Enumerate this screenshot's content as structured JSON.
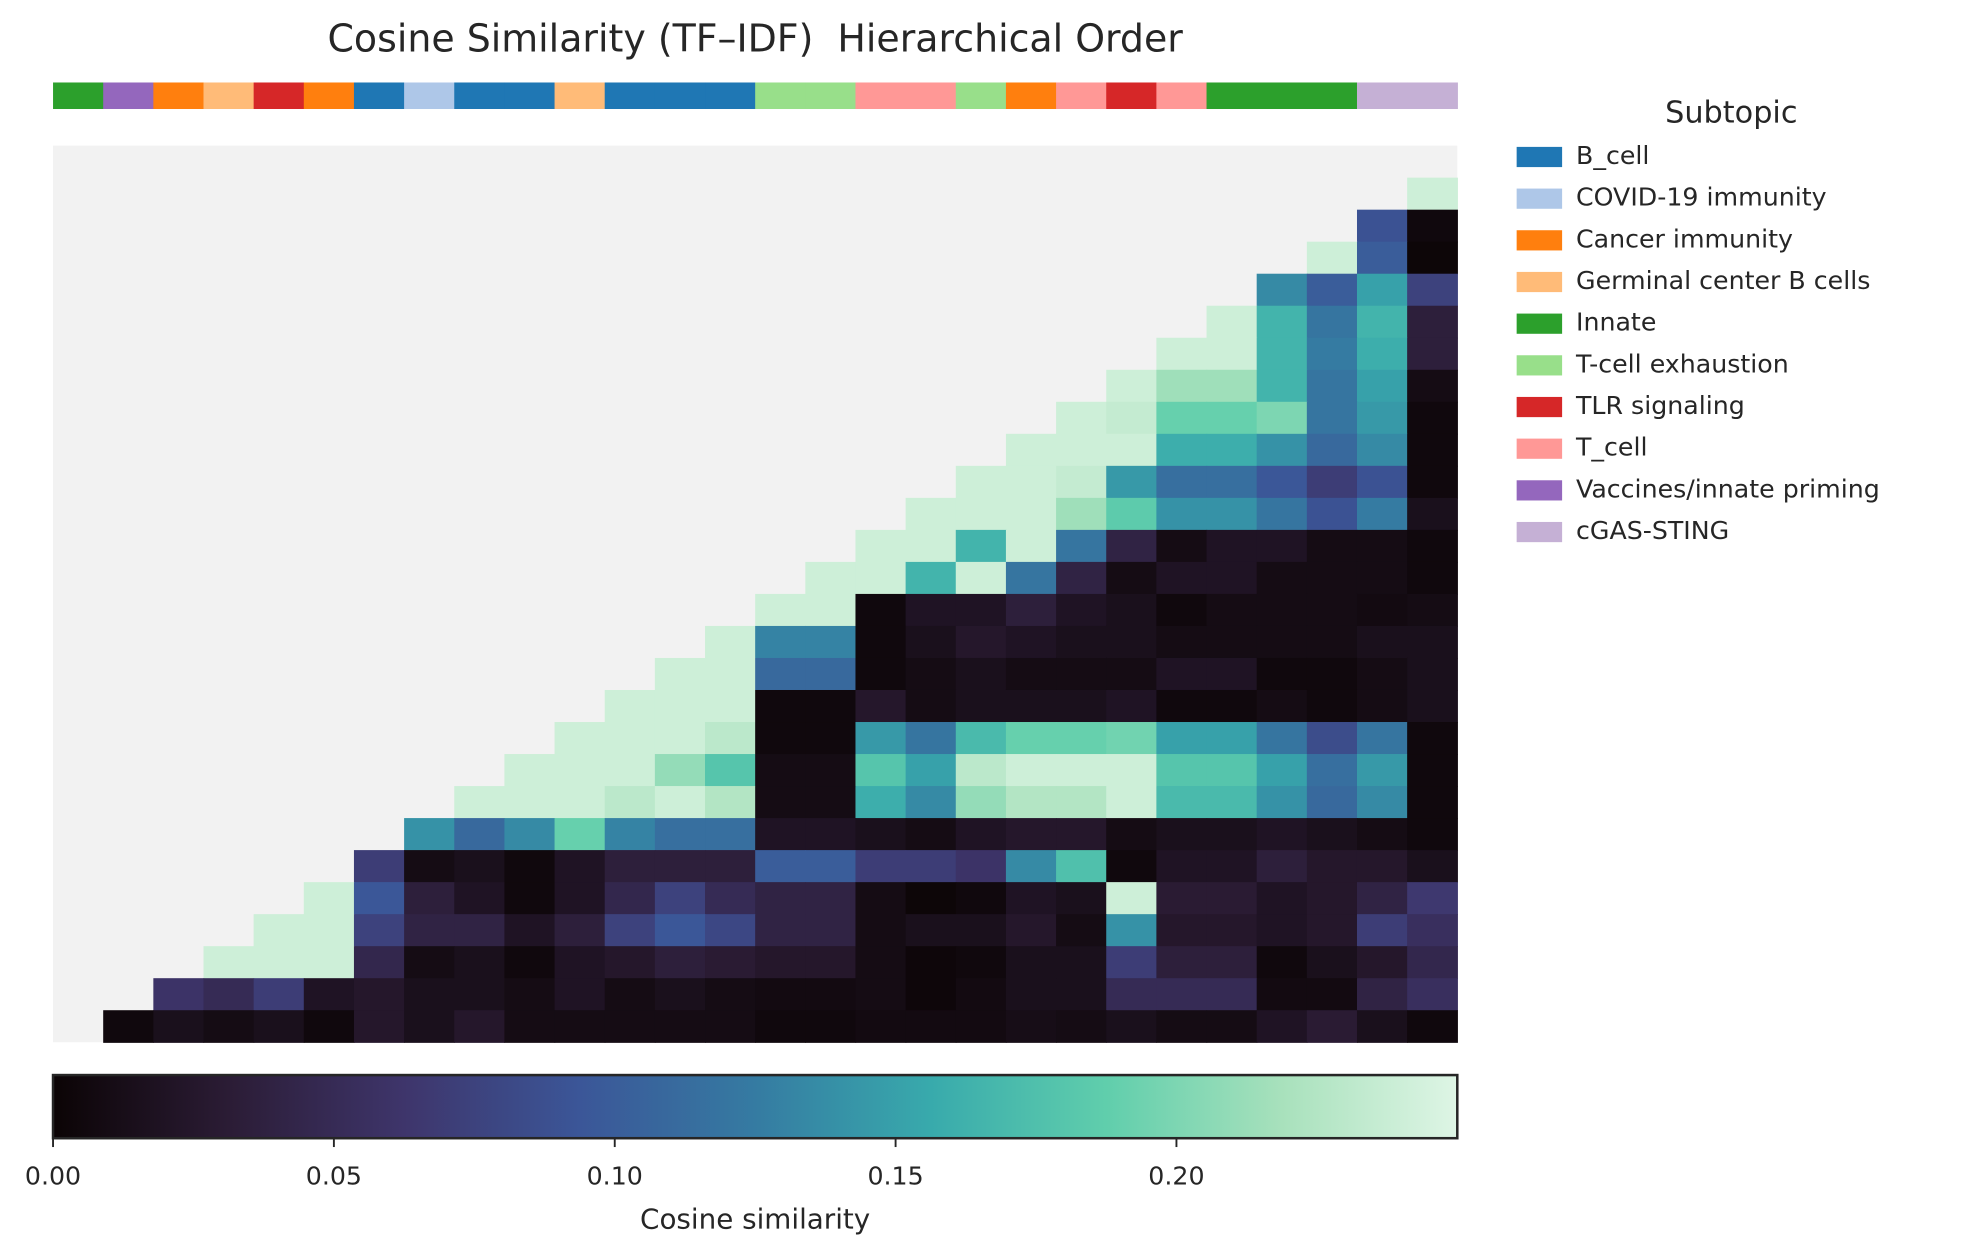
{
  "chart_data": {
    "type": "heatmap",
    "title": "Cosine Similarity (TF–IDF)  Hierarchical Order",
    "colorbar_label": "Cosine similarity",
    "legend_title": "Subtopic",
    "mask_color": "#f2f2f2",
    "colormap": [
      "#0b0405",
      "#2b1c35",
      "#3e356b",
      "#3b5698",
      "#357ba2",
      "#38aaac",
      "#60ceac",
      "#a8e1bc",
      "#def5e5"
    ],
    "clim": [
      0,
      0.25
    ],
    "cticks": [
      {
        "value": 0,
        "label": "0.00"
      },
      {
        "value": 0.05,
        "label": "0.05"
      },
      {
        "value": 0.1,
        "label": "0.10"
      },
      {
        "value": 0.15,
        "label": "0.15"
      },
      {
        "value": 0.2,
        "label": "0.20"
      }
    ],
    "subtopics": [
      {
        "name": "B_cell",
        "color": "#1f77b4"
      },
      {
        "name": "COVID-19 immunity",
        "color": "#aec7e8"
      },
      {
        "name": "Cancer immunity",
        "color": "#ff7f0e"
      },
      {
        "name": "Germinal center B cells",
        "color": "#ffbb78"
      },
      {
        "name": "Innate",
        "color": "#2ca02c"
      },
      {
        "name": "T-cell exhaustion",
        "color": "#98df8a"
      },
      {
        "name": "TLR signaling",
        "color": "#d62728"
      },
      {
        "name": "T_cell",
        "color": "#ff9896"
      },
      {
        "name": "Vaccines/innate priming",
        "color": "#9467bd"
      },
      {
        "name": "cGAS-STING",
        "color": "#c5b0d5"
      }
    ],
    "column_subtopics": [
      "Innate",
      "Vaccines/innate priming",
      "Cancer immunity",
      "Germinal center B cells",
      "TLR signaling",
      "Cancer immunity",
      "B_cell",
      "COVID-19 immunity",
      "B_cell",
      "B_cell",
      "Germinal center B cells",
      "B_cell",
      "B_cell",
      "B_cell",
      "T-cell exhaustion",
      "T-cell exhaustion",
      "T_cell",
      "T_cell",
      "T-cell exhaustion",
      "Cancer immunity",
      "T_cell",
      "TLR signaling",
      "T_cell",
      "Innate",
      "Innate",
      "Innate",
      "cGAS-STING",
      "cGAS-STING"
    ],
    "values": [
      [
        null,
        null,
        null,
        null,
        null,
        null,
        null,
        null,
        null,
        null,
        null,
        null,
        null,
        null,
        null,
        null,
        null,
        null,
        null,
        null,
        null,
        null,
        null,
        null,
        null,
        null,
        null,
        null
      ],
      [
        null,
        null,
        null,
        null,
        null,
        null,
        null,
        null,
        null,
        null,
        null,
        null,
        null,
        null,
        null,
        null,
        null,
        null,
        null,
        null,
        null,
        null,
        null,
        null,
        null,
        null,
        null,
        0.24
      ],
      [
        null,
        null,
        null,
        null,
        null,
        null,
        null,
        null,
        null,
        null,
        null,
        null,
        null,
        null,
        null,
        null,
        null,
        null,
        null,
        null,
        null,
        null,
        null,
        null,
        null,
        null,
        0.09,
        0.005
      ],
      [
        null,
        null,
        null,
        null,
        null,
        null,
        null,
        null,
        null,
        null,
        null,
        null,
        null,
        null,
        null,
        null,
        null,
        null,
        null,
        null,
        null,
        null,
        null,
        null,
        null,
        0.24,
        0.1,
        0.002
      ],
      [
        null,
        null,
        null,
        null,
        null,
        null,
        null,
        null,
        null,
        null,
        null,
        null,
        null,
        null,
        null,
        null,
        null,
        null,
        null,
        null,
        null,
        null,
        null,
        null,
        0.135,
        0.1,
        0.15,
        0.075
      ],
      [
        null,
        null,
        null,
        null,
        null,
        null,
        null,
        null,
        null,
        null,
        null,
        null,
        null,
        null,
        null,
        null,
        null,
        null,
        null,
        null,
        null,
        null,
        null,
        0.24,
        0.165,
        0.12,
        0.165,
        0.035
      ],
      [
        null,
        null,
        null,
        null,
        null,
        null,
        null,
        null,
        null,
        null,
        null,
        null,
        null,
        null,
        null,
        null,
        null,
        null,
        null,
        null,
        null,
        null,
        0.24,
        0.24,
        0.165,
        0.125,
        0.16,
        0.035
      ],
      [
        null,
        null,
        null,
        null,
        null,
        null,
        null,
        null,
        null,
        null,
        null,
        null,
        null,
        null,
        null,
        null,
        null,
        null,
        null,
        null,
        null,
        0.24,
        0.215,
        0.215,
        0.165,
        0.12,
        0.15,
        0.01
      ],
      [
        null,
        null,
        null,
        null,
        null,
        null,
        null,
        null,
        null,
        null,
        null,
        null,
        null,
        null,
        null,
        null,
        null,
        null,
        null,
        null,
        0.24,
        0.235,
        0.19,
        0.19,
        0.2,
        0.12,
        0.145,
        0.005
      ],
      [
        null,
        null,
        null,
        null,
        null,
        null,
        null,
        null,
        null,
        null,
        null,
        null,
        null,
        null,
        null,
        null,
        null,
        null,
        null,
        0.24,
        0.24,
        0.24,
        0.16,
        0.16,
        0.14,
        0.11,
        0.135,
        0.005
      ],
      [
        null,
        null,
        null,
        null,
        null,
        null,
        null,
        null,
        null,
        null,
        null,
        null,
        null,
        null,
        null,
        null,
        null,
        null,
        0.24,
        0.24,
        0.235,
        0.145,
        0.115,
        0.115,
        0.095,
        0.07,
        0.09,
        0.005
      ],
      [
        null,
        null,
        null,
        null,
        null,
        null,
        null,
        null,
        null,
        null,
        null,
        null,
        null,
        null,
        null,
        null,
        null,
        0.24,
        0.24,
        0.24,
        0.215,
        0.185,
        0.14,
        0.14,
        0.12,
        0.09,
        0.125,
        0.015
      ],
      [
        null,
        null,
        null,
        null,
        null,
        null,
        null,
        null,
        null,
        null,
        null,
        null,
        null,
        null,
        null,
        null,
        0.24,
        0.24,
        0.165,
        0.24,
        0.12,
        0.04,
        0.01,
        0.02,
        0.02,
        0.01,
        0.01,
        0.005
      ],
      [
        null,
        null,
        null,
        null,
        null,
        null,
        null,
        null,
        null,
        null,
        null,
        null,
        null,
        null,
        null,
        0.24,
        0.24,
        0.165,
        0.24,
        0.12,
        0.04,
        0.01,
        0.02,
        0.02,
        0.01,
        0.01,
        0.01,
        0.005
      ],
      [
        null,
        null,
        null,
        null,
        null,
        null,
        null,
        null,
        null,
        null,
        null,
        null,
        null,
        null,
        0.24,
        0.24,
        0.005,
        0.02,
        0.02,
        0.035,
        0.02,
        0.015,
        0.005,
        0.01,
        0.01,
        0.01,
        0.008,
        0.01
      ],
      [
        null,
        null,
        null,
        null,
        null,
        null,
        null,
        null,
        null,
        null,
        null,
        null,
        null,
        0.24,
        0.13,
        0.13,
        0.005,
        0.015,
        0.025,
        0.02,
        0.015,
        0.015,
        0.01,
        0.01,
        0.01,
        0.01,
        0.015,
        0.015
      ],
      [
        null,
        null,
        null,
        null,
        null,
        null,
        null,
        null,
        null,
        null,
        null,
        null,
        0.24,
        0.24,
        0.11,
        0.11,
        0.005,
        0.01,
        0.015,
        0.01,
        0.01,
        0.01,
        0.02,
        0.02,
        0.005,
        0.005,
        0.01,
        0.015
      ],
      [
        null,
        null,
        null,
        null,
        null,
        null,
        null,
        null,
        null,
        null,
        null,
        0.24,
        0.24,
        0.24,
        0.005,
        0.005,
        0.025,
        0.01,
        0.015,
        0.015,
        0.015,
        0.02,
        0.005,
        0.005,
        0.01,
        0.005,
        0.01,
        0.015
      ],
      [
        null,
        null,
        null,
        null,
        null,
        null,
        null,
        null,
        null,
        null,
        0.24,
        0.24,
        0.24,
        0.23,
        0.005,
        0.005,
        0.145,
        0.12,
        0.17,
        0.19,
        0.19,
        0.195,
        0.15,
        0.15,
        0.12,
        0.085,
        0.12,
        0.005
      ],
      [
        null,
        null,
        null,
        null,
        null,
        null,
        null,
        null,
        null,
        0.24,
        0.24,
        0.24,
        0.21,
        0.18,
        0.01,
        0.01,
        0.18,
        0.15,
        0.23,
        0.24,
        0.24,
        0.24,
        0.18,
        0.18,
        0.15,
        0.115,
        0.145,
        0.005
      ],
      [
        null,
        null,
        null,
        null,
        null,
        null,
        null,
        null,
        0.24,
        0.24,
        0.24,
        0.23,
        0.24,
        0.225,
        0.01,
        0.01,
        0.16,
        0.135,
        0.21,
        0.225,
        0.225,
        0.24,
        0.17,
        0.17,
        0.14,
        0.11,
        0.135,
        0.005
      ],
      [
        null,
        null,
        null,
        null,
        null,
        null,
        null,
        0.14,
        0.11,
        0.135,
        0.19,
        0.13,
        0.115,
        0.115,
        0.02,
        0.02,
        0.015,
        0.01,
        0.02,
        0.025,
        0.025,
        0.01,
        0.015,
        0.015,
        0.02,
        0.015,
        0.01,
        0.005
      ],
      [
        null,
        null,
        null,
        null,
        null,
        null,
        0.07,
        0.01,
        0.015,
        0.005,
        0.02,
        0.035,
        0.035,
        0.035,
        0.1,
        0.1,
        0.07,
        0.07,
        0.06,
        0.135,
        0.175,
        0.005,
        0.02,
        0.02,
        0.035,
        0.025,
        0.025,
        0.015
      ],
      [
        null,
        null,
        null,
        null,
        null,
        0.24,
        0.095,
        0.035,
        0.02,
        0.005,
        0.02,
        0.045,
        0.075,
        0.05,
        0.04,
        0.04,
        0.01,
        0.002,
        0.005,
        0.02,
        0.015,
        0.24,
        0.03,
        0.03,
        0.02,
        0.025,
        0.04,
        0.065
      ],
      [
        null,
        null,
        null,
        null,
        0.24,
        0.24,
        0.075,
        0.04,
        0.04,
        0.02,
        0.035,
        0.075,
        0.095,
        0.08,
        0.04,
        0.04,
        0.01,
        0.015,
        0.015,
        0.025,
        0.01,
        0.14,
        0.025,
        0.025,
        0.02,
        0.025,
        0.07,
        0.055
      ],
      [
        null,
        null,
        null,
        0.24,
        0.24,
        0.24,
        0.045,
        0.01,
        0.015,
        0.005,
        0.02,
        0.025,
        0.035,
        0.03,
        0.025,
        0.025,
        0.01,
        0.003,
        0.005,
        0.015,
        0.015,
        0.07,
        0.035,
        0.035,
        0.005,
        0.015,
        0.025,
        0.045
      ],
      [
        null,
        null,
        0.06,
        0.05,
        0.07,
        0.02,
        0.025,
        0.015,
        0.015,
        0.01,
        0.02,
        0.01,
        0.015,
        0.01,
        0.008,
        0.008,
        0.01,
        0.003,
        0.008,
        0.015,
        0.015,
        0.05,
        0.05,
        0.05,
        0.008,
        0.008,
        0.04,
        0.055
      ],
      [
        null,
        0.005,
        0.015,
        0.01,
        0.015,
        0.005,
        0.025,
        0.015,
        0.025,
        0.01,
        0.01,
        0.01,
        0.01,
        0.01,
        0.005,
        0.005,
        0.008,
        0.008,
        0.008,
        0.012,
        0.01,
        0.015,
        0.01,
        0.01,
        0.02,
        0.03,
        0.015,
        0.005
      ]
    ]
  }
}
